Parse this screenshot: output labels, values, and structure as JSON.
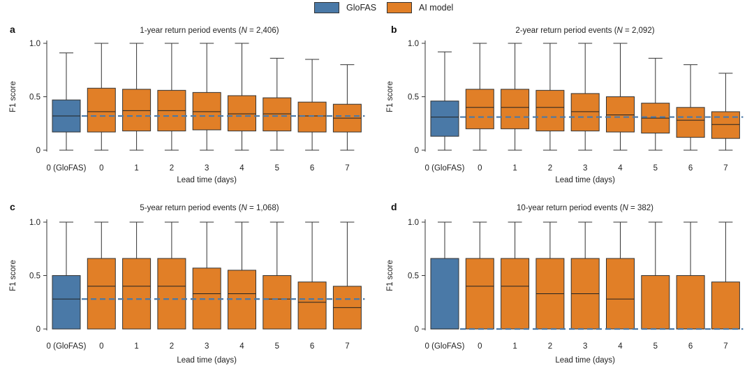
{
  "legend": {
    "gloFAS": "GloFAS",
    "ai": "AI model"
  },
  "colors": {
    "gloFAS": "#4a79a7",
    "ai": "#e17f27",
    "reference": "#4a79a7"
  },
  "chart_data": [
    {
      "panel": "a",
      "title_prefix": "1-year return period events (",
      "title_n_label": "N",
      "title_suffix": " = 2,406)",
      "type": "box",
      "ylabel": "F1 score",
      "xlabel": "Lead time (days)",
      "ylim": [
        0,
        1
      ],
      "yticks": [
        "0",
        "0.5",
        "1.0"
      ],
      "categories": [
        "0 (GloFAS)",
        "0",
        "1",
        "2",
        "3",
        "4",
        "5",
        "6",
        "7"
      ],
      "boxes": [
        {
          "series": "GloFAS",
          "whisker_low": 0.0,
          "q1": 0.17,
          "median": 0.32,
          "q3": 0.47,
          "whisker_high": 0.91
        },
        {
          "series": "AI model",
          "whisker_low": 0.0,
          "q1": 0.17,
          "median": 0.36,
          "q3": 0.58,
          "whisker_high": 1.0
        },
        {
          "series": "AI model",
          "whisker_low": 0.0,
          "q1": 0.18,
          "median": 0.37,
          "q3": 0.57,
          "whisker_high": 1.0
        },
        {
          "series": "AI model",
          "whisker_low": 0.0,
          "q1": 0.18,
          "median": 0.37,
          "q3": 0.56,
          "whisker_high": 1.0
        },
        {
          "series": "AI model",
          "whisker_low": 0.0,
          "q1": 0.19,
          "median": 0.36,
          "q3": 0.54,
          "whisker_high": 1.0
        },
        {
          "series": "AI model",
          "whisker_low": 0.0,
          "q1": 0.18,
          "median": 0.34,
          "q3": 0.51,
          "whisker_high": 1.0
        },
        {
          "series": "AI model",
          "whisker_low": 0.0,
          "q1": 0.18,
          "median": 0.34,
          "q3": 0.49,
          "whisker_high": 0.86
        },
        {
          "series": "AI model",
          "whisker_low": 0.0,
          "q1": 0.17,
          "median": 0.32,
          "q3": 0.45,
          "whisker_high": 0.85
        },
        {
          "series": "AI model",
          "whisker_low": 0.0,
          "q1": 0.17,
          "median": 0.3,
          "q3": 0.43,
          "whisker_high": 0.8
        }
      ],
      "reference_line": 0.32
    },
    {
      "panel": "b",
      "title_prefix": "2-year return period events (",
      "title_n_label": "N",
      "title_suffix": " = 2,092)",
      "type": "box",
      "ylabel": "F1 score",
      "xlabel": "Lead time (days)",
      "ylim": [
        0,
        1
      ],
      "yticks": [
        "0",
        "0.5",
        "1.0"
      ],
      "categories": [
        "0 (GloFAS)",
        "0",
        "1",
        "2",
        "3",
        "4",
        "5",
        "6",
        "7"
      ],
      "boxes": [
        {
          "series": "GloFAS",
          "whisker_low": 0.0,
          "q1": 0.13,
          "median": 0.31,
          "q3": 0.46,
          "whisker_high": 0.92
        },
        {
          "series": "AI model",
          "whisker_low": 0.0,
          "q1": 0.2,
          "median": 0.4,
          "q3": 0.57,
          "whisker_high": 1.0
        },
        {
          "series": "AI model",
          "whisker_low": 0.0,
          "q1": 0.2,
          "median": 0.4,
          "q3": 0.57,
          "whisker_high": 1.0
        },
        {
          "series": "AI model",
          "whisker_low": 0.0,
          "q1": 0.18,
          "median": 0.4,
          "q3": 0.56,
          "whisker_high": 1.0
        },
        {
          "series": "AI model",
          "whisker_low": 0.0,
          "q1": 0.18,
          "median": 0.36,
          "q3": 0.53,
          "whisker_high": 1.0
        },
        {
          "series": "AI model",
          "whisker_low": 0.0,
          "q1": 0.17,
          "median": 0.33,
          "q3": 0.5,
          "whisker_high": 1.0
        },
        {
          "series": "AI model",
          "whisker_low": 0.0,
          "q1": 0.16,
          "median": 0.3,
          "q3": 0.44,
          "whisker_high": 0.86
        },
        {
          "series": "AI model",
          "whisker_low": 0.0,
          "q1": 0.12,
          "median": 0.28,
          "q3": 0.4,
          "whisker_high": 0.8
        },
        {
          "series": "AI model",
          "whisker_low": 0.0,
          "q1": 0.11,
          "median": 0.24,
          "q3": 0.36,
          "whisker_high": 0.72
        }
      ],
      "reference_line": 0.31
    },
    {
      "panel": "c",
      "title_prefix": "5-year return period events (",
      "title_n_label": "N",
      "title_suffix": " = 1,068)",
      "type": "box",
      "ylabel": "F1 score",
      "xlabel": "Lead time (days)",
      "ylim": [
        0,
        1
      ],
      "yticks": [
        "0",
        "0.5",
        "1.0"
      ],
      "categories": [
        "0 (GloFAS)",
        "0",
        "1",
        "2",
        "3",
        "4",
        "5",
        "6",
        "7"
      ],
      "boxes": [
        {
          "series": "GloFAS",
          "whisker_low": 0.0,
          "q1": 0.0,
          "median": 0.28,
          "q3": 0.5,
          "whisker_high": 1.0
        },
        {
          "series": "AI model",
          "whisker_low": 0.0,
          "q1": 0.0,
          "median": 0.4,
          "q3": 0.66,
          "whisker_high": 1.0
        },
        {
          "series": "AI model",
          "whisker_low": 0.0,
          "q1": 0.0,
          "median": 0.4,
          "q3": 0.66,
          "whisker_high": 1.0
        },
        {
          "series": "AI model",
          "whisker_low": 0.0,
          "q1": 0.0,
          "median": 0.4,
          "q3": 0.66,
          "whisker_high": 1.0
        },
        {
          "series": "AI model",
          "whisker_low": 0.0,
          "q1": 0.0,
          "median": 0.33,
          "q3": 0.57,
          "whisker_high": 1.0
        },
        {
          "series": "AI model",
          "whisker_low": 0.0,
          "q1": 0.0,
          "median": 0.33,
          "q3": 0.55,
          "whisker_high": 1.0
        },
        {
          "series": "AI model",
          "whisker_low": 0.0,
          "q1": 0.0,
          "median": 0.28,
          "q3": 0.5,
          "whisker_high": 1.0
        },
        {
          "series": "AI model",
          "whisker_low": 0.0,
          "q1": 0.0,
          "median": 0.25,
          "q3": 0.44,
          "whisker_high": 1.0
        },
        {
          "series": "AI model",
          "whisker_low": 0.0,
          "q1": 0.0,
          "median": 0.2,
          "q3": 0.4,
          "whisker_high": 1.0
        }
      ],
      "reference_line": 0.28
    },
    {
      "panel": "d",
      "title_prefix": "10-year return period events (",
      "title_n_label": "N",
      "title_suffix": " = 382)",
      "type": "box",
      "ylabel": "F1 score",
      "xlabel": "Lead time (days)",
      "ylim": [
        0,
        1
      ],
      "yticks": [
        "0",
        "0.5",
        "1.0"
      ],
      "categories": [
        "0 (GloFAS)",
        "0",
        "1",
        "2",
        "3",
        "4",
        "5",
        "6",
        "7"
      ],
      "boxes": [
        {
          "series": "GloFAS",
          "whisker_low": 0.0,
          "q1": 0.0,
          "median": 0.0,
          "q3": 0.66,
          "whisker_high": 1.0
        },
        {
          "series": "AI model",
          "whisker_low": 0.0,
          "q1": 0.0,
          "median": 0.4,
          "q3": 0.66,
          "whisker_high": 1.0
        },
        {
          "series": "AI model",
          "whisker_low": 0.0,
          "q1": 0.0,
          "median": 0.4,
          "q3": 0.66,
          "whisker_high": 1.0
        },
        {
          "series": "AI model",
          "whisker_low": 0.0,
          "q1": 0.0,
          "median": 0.33,
          "q3": 0.66,
          "whisker_high": 1.0
        },
        {
          "series": "AI model",
          "whisker_low": 0.0,
          "q1": 0.0,
          "median": 0.33,
          "q3": 0.66,
          "whisker_high": 1.0
        },
        {
          "series": "AI model",
          "whisker_low": 0.0,
          "q1": 0.0,
          "median": 0.28,
          "q3": 0.66,
          "whisker_high": 1.0
        },
        {
          "series": "AI model",
          "whisker_low": 0.0,
          "q1": 0.0,
          "median": 0.0,
          "q3": 0.5,
          "whisker_high": 1.0
        },
        {
          "series": "AI model",
          "whisker_low": 0.0,
          "q1": 0.0,
          "median": 0.0,
          "q3": 0.5,
          "whisker_high": 1.0
        },
        {
          "series": "AI model",
          "whisker_low": 0.0,
          "q1": 0.0,
          "median": 0.0,
          "q3": 0.44,
          "whisker_high": 1.0
        }
      ],
      "reference_line": 0.0
    }
  ]
}
